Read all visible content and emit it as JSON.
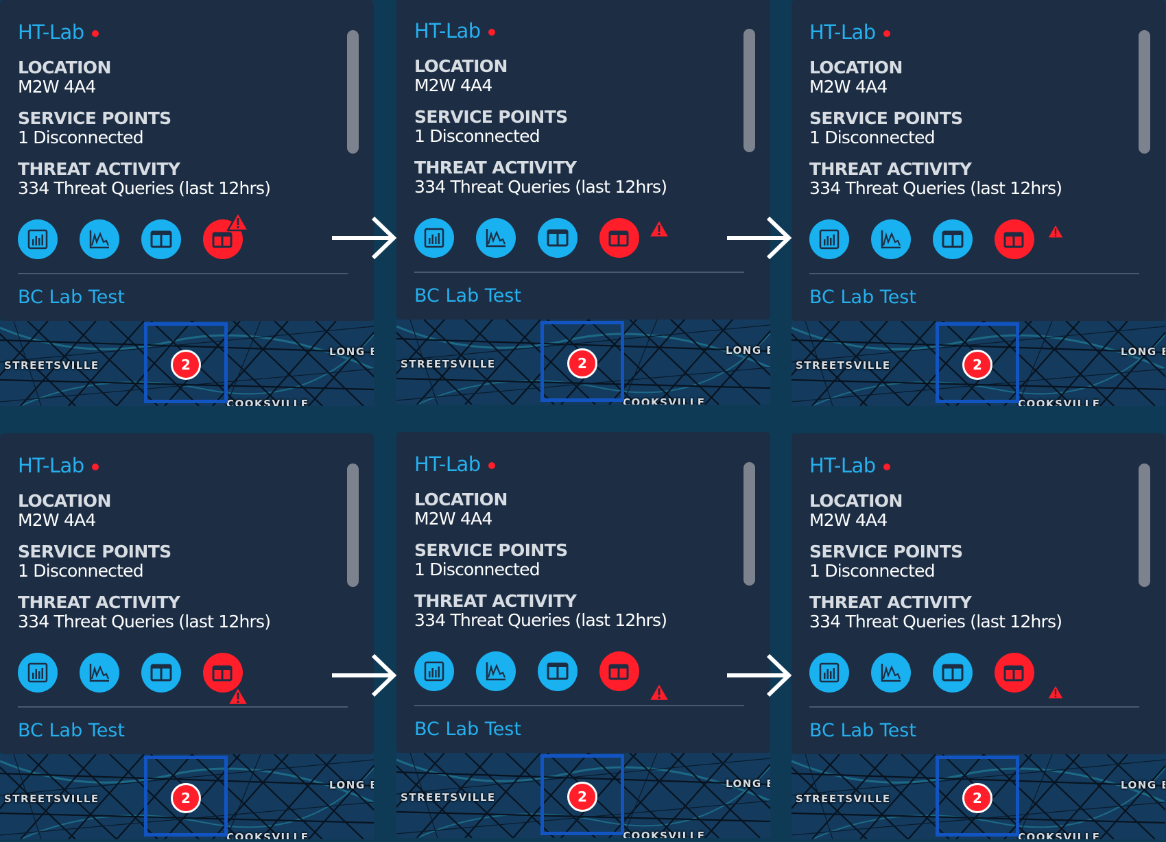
{
  "tooltip": {
    "site_name": "HT-Lab",
    "location_label": "LOCATION",
    "location_value": "M2W 4A4",
    "service_label": "SERVICE POINTS",
    "service_value": "1 Disconnected",
    "threat_label": "THREAT ACTIVITY",
    "threat_value": "334 Threat Queries (last 12hrs)",
    "next_site": "BC Lab Test",
    "actions": [
      {
        "icon": "bar-chart-icon",
        "color": "#1ab1f0"
      },
      {
        "icon": "line-chart-icon",
        "color": "#1ab1f0"
      },
      {
        "icon": "columns-layout-icon",
        "color": "#1ab1f0"
      },
      {
        "icon": "device-warning-icon",
        "color": "#ff1e2a"
      }
    ]
  },
  "map": {
    "labels": [
      "STREETSVILLE",
      "LONG B",
      "COOKSVILLE"
    ],
    "cluster_count": "2"
  },
  "variants": [
    {
      "row": 1,
      "col": 1,
      "warning_badge": "top-right, outside"
    },
    {
      "row": 1,
      "col": 2,
      "warning_badge": "top-right, inside"
    },
    {
      "row": 1,
      "col": 3,
      "warning_badge": "top-right, inside small"
    },
    {
      "row": 2,
      "col": 1,
      "warning_badge": "bottom-right, outside"
    },
    {
      "row": 2,
      "col": 2,
      "warning_badge": "bottom-right, inside"
    },
    {
      "row": 2,
      "col": 3,
      "warning_badge": "bottom-right, inside small"
    }
  ],
  "colors": {
    "background": "#0f3a55",
    "card": "#1c2d44",
    "accent_blue": "#1ab1f0",
    "alert_red": "#ff1e2a",
    "selection_blue": "#1254c2"
  }
}
